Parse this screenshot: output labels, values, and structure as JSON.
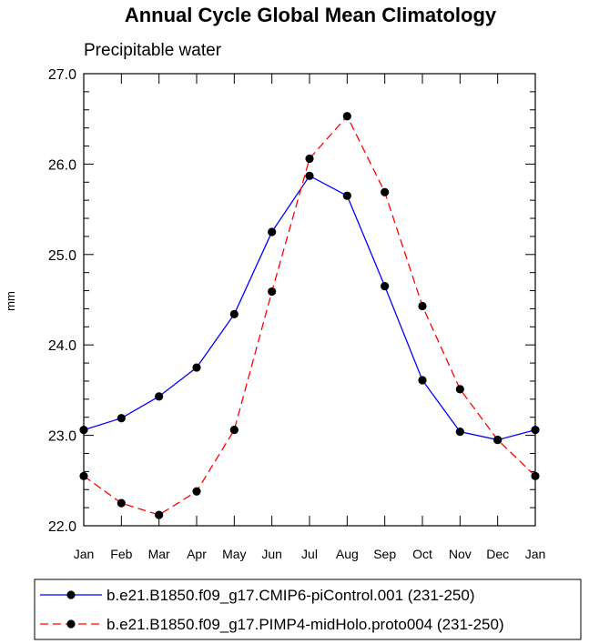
{
  "chart_data": {
    "type": "line",
    "title": "Annual Cycle Global Mean Climatology",
    "subtitle": "Precipitable water",
    "xlabel": "",
    "ylabel": "mm",
    "categories": [
      "Jan",
      "Feb",
      "Mar",
      "Apr",
      "May",
      "Jun",
      "Jul",
      "Aug",
      "Sep",
      "Oct",
      "Nov",
      "Dec",
      "Jan"
    ],
    "ylim": [
      22.0,
      27.0
    ],
    "yticks": [
      "22.0",
      "23.0",
      "24.0",
      "25.0",
      "26.0",
      "27.0"
    ],
    "grid": false,
    "legend_position": "bottom",
    "series": [
      {
        "name": "b.e21.B1850.f09_g17.CMIP6-piControl.001 (231-250)",
        "color": "#0000ff",
        "dash": "solid",
        "values": [
          23.06,
          23.19,
          23.43,
          23.75,
          24.34,
          25.25,
          25.87,
          25.65,
          24.65,
          23.61,
          23.04,
          22.95,
          23.06
        ]
      },
      {
        "name": "b.e21.B1850.f09_g17.PIMP4-midHolo.proto004 (231-250)",
        "color": "#ff0000",
        "dash": "dashed",
        "values": [
          22.55,
          22.25,
          22.12,
          22.38,
          23.06,
          24.59,
          26.06,
          26.53,
          25.69,
          24.43,
          23.51,
          22.95,
          22.55
        ]
      }
    ]
  }
}
